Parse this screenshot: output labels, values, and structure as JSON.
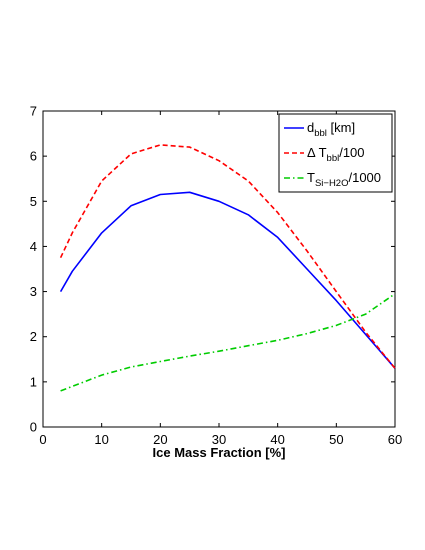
{
  "chart_data": {
    "type": "line",
    "xlabel": "Ice Mass Fraction [%]",
    "ylabel": "",
    "xlim": [
      0,
      60
    ],
    "ylim": [
      0,
      7
    ],
    "xticks": [
      0,
      10,
      20,
      30,
      40,
      50,
      60
    ],
    "yticks": [
      0,
      1,
      2,
      3,
      4,
      5,
      6,
      7
    ],
    "grid": false,
    "legend_position": "top-right",
    "series": [
      {
        "key": "d",
        "name_main": "d",
        "name_sub": "bbl",
        "name_suffix": " [km]",
        "color": "#0000ff",
        "dash": "solid",
        "x": [
          3,
          5,
          10,
          15,
          20,
          25,
          30,
          35,
          40,
          45,
          50,
          55,
          60
        ],
        "y": [
          3.0,
          3.45,
          4.3,
          4.9,
          5.15,
          5.2,
          5.0,
          4.7,
          4.2,
          3.5,
          2.8,
          2.05,
          1.3
        ]
      },
      {
        "key": "dT",
        "name_main": "Δ T",
        "name_sub": "bbl",
        "name_suffix": "/100",
        "color": "#ff0000",
        "dash": "dashed",
        "x": [
          3,
          5,
          10,
          15,
          20,
          25,
          30,
          35,
          40,
          45,
          50,
          55,
          60
        ],
        "y": [
          3.75,
          4.3,
          5.45,
          6.05,
          6.25,
          6.2,
          5.9,
          5.45,
          4.75,
          3.9,
          3.0,
          2.1,
          1.3
        ]
      },
      {
        "key": "T",
        "name_main": "T",
        "name_sub": "Si−H2O",
        "name_suffix": "/1000",
        "color": "#00cc00",
        "dash": "dashdot",
        "x": [
          3,
          5,
          10,
          15,
          20,
          25,
          30,
          35,
          40,
          45,
          50,
          55,
          60
        ],
        "y": [
          0.8,
          0.9,
          1.15,
          1.33,
          1.45,
          1.57,
          1.68,
          1.8,
          1.92,
          2.07,
          2.25,
          2.5,
          2.95
        ]
      }
    ]
  }
}
